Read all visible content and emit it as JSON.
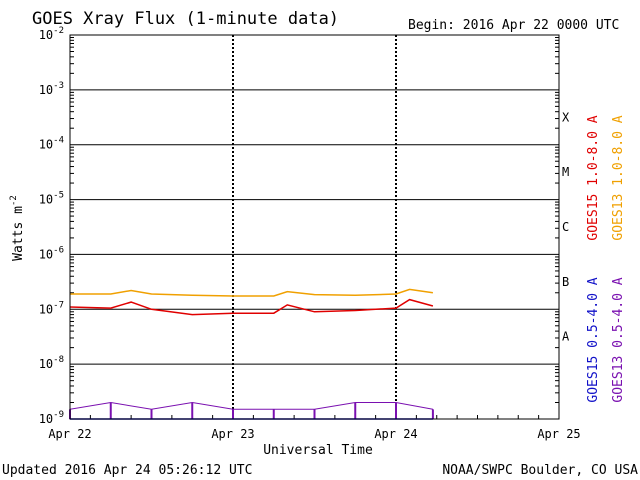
{
  "header": {
    "title": "GOES Xray Flux (1-minute data)",
    "begin": "Begin:  2016 Apr 22 0000 UTC"
  },
  "footer": {
    "updated": "Updated 2016 Apr 24 05:26:12 UTC",
    "credit": "NOAA/SWPC Boulder, CO USA"
  },
  "colors": {
    "goes15_long": "#e00000",
    "goes13_long": "#f0a000",
    "goes15_short": "#1010c8",
    "goes13_short": "#7a10b0"
  },
  "chart_data": {
    "type": "line",
    "title": "GOES Xray Flux (1-minute data)",
    "xlabel": "Universal Time",
    "ylabel": "Watts m^-2",
    "ylabel_base": "Watts m",
    "ylabel_exp": "-2",
    "y_scale": "log",
    "ylim": [
      1e-09,
      0.01
    ],
    "y_ticks": [
      {
        "base": "10",
        "exp": "-9",
        "value": 1e-09
      },
      {
        "base": "10",
        "exp": "-8",
        "value": 1e-08
      },
      {
        "base": "10",
        "exp": "-7",
        "value": 1e-07
      },
      {
        "base": "10",
        "exp": "-6",
        "value": 1e-06
      },
      {
        "base": "10",
        "exp": "-5",
        "value": 1e-05
      },
      {
        "base": "10",
        "exp": "-4",
        "value": 0.0001
      },
      {
        "base": "10",
        "exp": "-3",
        "value": 0.001
      },
      {
        "base": "10",
        "exp": "-2",
        "value": 0.01
      }
    ],
    "x_ticks": [
      "Apr 22",
      "Apr 23",
      "Apr 24",
      "Apr 25"
    ],
    "xlim": [
      "2016-04-22 00:00",
      "2016-04-25 00:00"
    ],
    "grid": true,
    "flare_classes": [
      {
        "label": "A",
        "value": 1e-08
      },
      {
        "label": "B",
        "value": 1e-07
      },
      {
        "label": "C",
        "value": 1e-06
      },
      {
        "label": "M",
        "value": 1e-05
      },
      {
        "label": "X",
        "value": 0.0001
      }
    ],
    "series": [
      {
        "name": "GOES15 1.0-8.0 A",
        "color": "#e00000",
        "x": [
          "2016-04-22 00:00",
          "2016-04-22 06:00",
          "2016-04-22 09:00",
          "2016-04-22 12:00",
          "2016-04-22 18:00",
          "2016-04-23 00:00",
          "2016-04-23 06:00",
          "2016-04-23 08:00",
          "2016-04-23 12:00",
          "2016-04-23 18:00",
          "2016-04-24 00:00",
          "2016-04-24 02:00",
          "2016-04-24 05:26"
        ],
        "values": [
          1.1e-07,
          1.05e-07,
          1.35e-07,
          1e-07,
          8e-08,
          8.5e-08,
          8.5e-08,
          1.2e-07,
          9e-08,
          9.5e-08,
          1.05e-07,
          1.5e-07,
          1.15e-07
        ]
      },
      {
        "name": "GOES13 1.0-8.0 A",
        "color": "#f0a000",
        "x": [
          "2016-04-22 00:00",
          "2016-04-22 06:00",
          "2016-04-22 09:00",
          "2016-04-22 12:00",
          "2016-04-22 18:00",
          "2016-04-23 00:00",
          "2016-04-23 06:00",
          "2016-04-23 08:00",
          "2016-04-23 12:00",
          "2016-04-23 18:00",
          "2016-04-24 00:00",
          "2016-04-24 02:00",
          "2016-04-24 05:26"
        ],
        "values": [
          1.9e-07,
          1.9e-07,
          2.2e-07,
          1.9e-07,
          1.8e-07,
          1.75e-07,
          1.75e-07,
          2.1e-07,
          1.85e-07,
          1.8e-07,
          1.9e-07,
          2.3e-07,
          2e-07
        ]
      },
      {
        "name": "GOES15 0.5-4.0 A",
        "color": "#1010c8",
        "x": [
          "2016-04-22 00:00",
          "2016-04-24 05:26"
        ],
        "values": [
          1e-09,
          1e-09
        ]
      },
      {
        "name": "GOES13 0.5-4.0 A",
        "color": "#7a10b0",
        "x": [
          "2016-04-22 00:00",
          "2016-04-22 06:00",
          "2016-04-22 12:00",
          "2016-04-22 18:00",
          "2016-04-23 00:00",
          "2016-04-23 06:00",
          "2016-04-23 12:00",
          "2016-04-23 18:00",
          "2016-04-24 00:00",
          "2016-04-24 05:26"
        ],
        "values": [
          1.5e-09,
          2e-09,
          1.5e-09,
          2e-09,
          1.5e-09,
          1.5e-09,
          1.5e-09,
          2e-09,
          2e-09,
          1.5e-09
        ]
      }
    ]
  }
}
